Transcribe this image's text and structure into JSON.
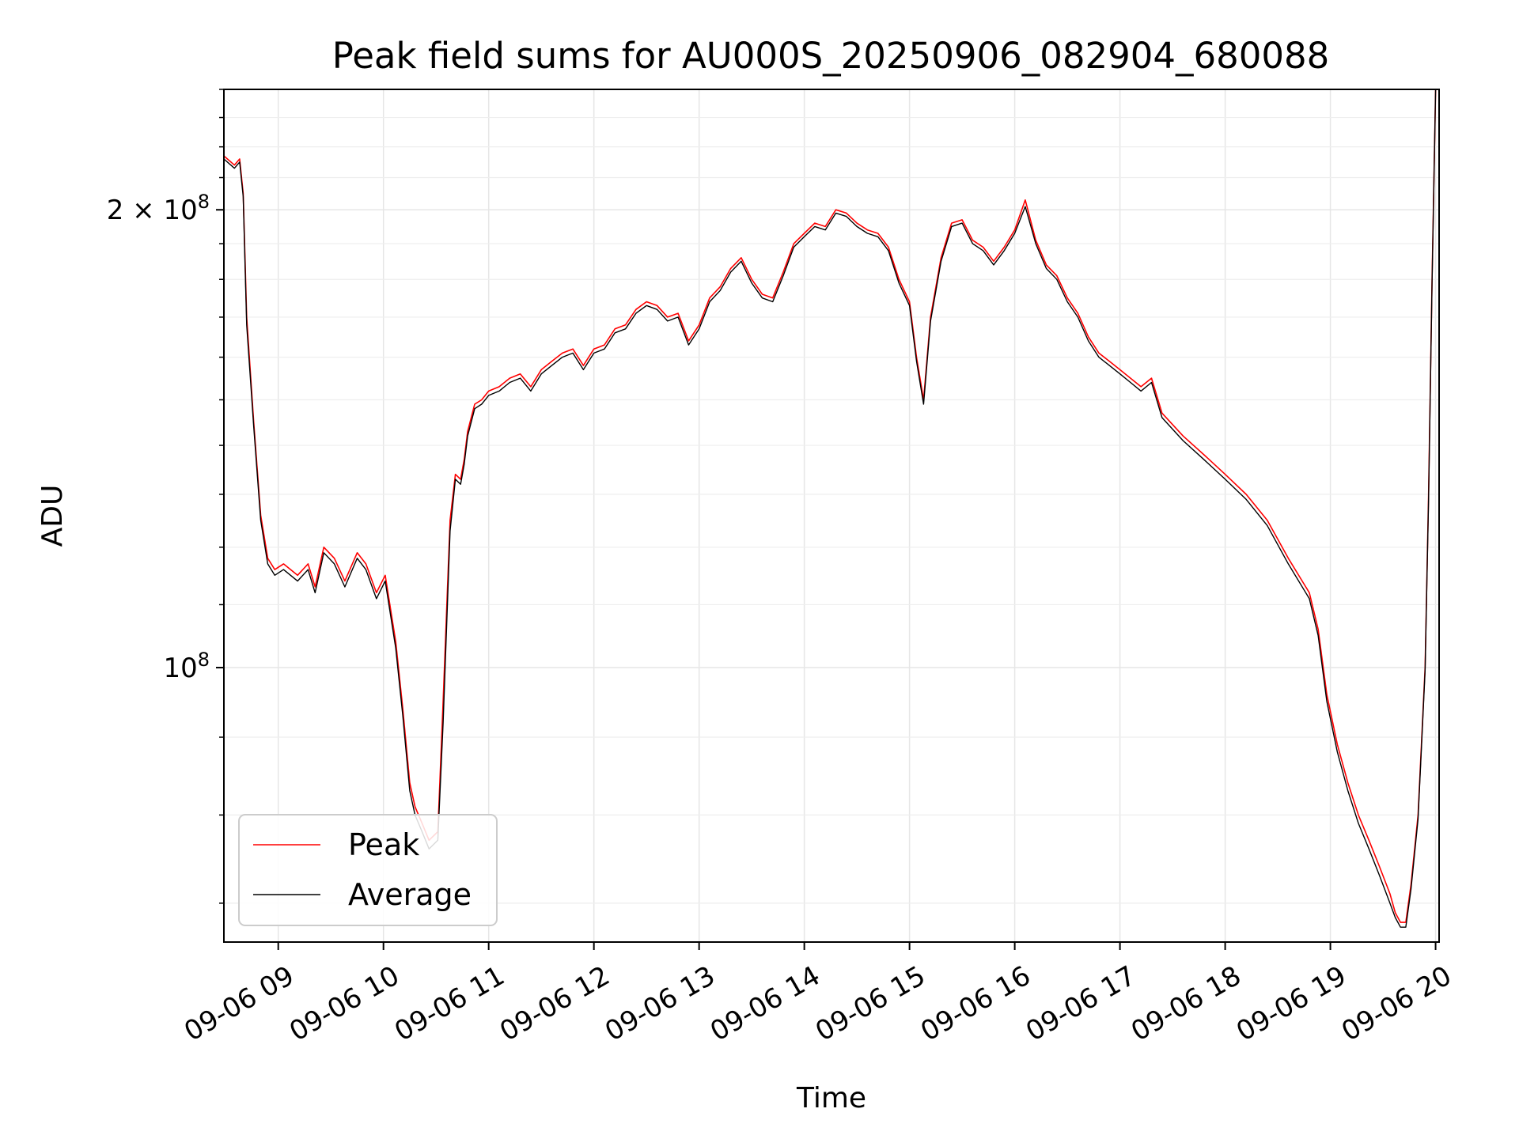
{
  "chart_data": {
    "type": "line",
    "title": "Peak field sums for AU000S_20250906_082904_680088",
    "xlabel": "Time",
    "ylabel": "ADU",
    "y_scale": "log",
    "grid": true,
    "legend_position": "lower-left",
    "x_tick_labels": [
      "09-06 09",
      "09-06 10",
      "09-06 11",
      "09-06 12",
      "09-06 13",
      "09-06 14",
      "09-06 15",
      "09-06 16",
      "09-06 17",
      "09-06 18",
      "09-06 19",
      "09-06 20"
    ],
    "x_ticks": [
      "2025-09-06T09:00",
      "2025-09-06T10:00",
      "2025-09-06T11:00",
      "2025-09-06T12:00",
      "2025-09-06T13:00",
      "2025-09-06T14:00",
      "2025-09-06T15:00",
      "2025-09-06T16:00",
      "2025-09-06T17:00",
      "2025-09-06T18:00",
      "2025-09-06T19:00",
      "2025-09-06T20:00"
    ],
    "xlim": [
      "2025-09-06T08:29",
      "2025-09-06T20:02"
    ],
    "y_ticks": [
      {
        "value": 100000000,
        "label_base": "10",
        "label_exp": "8"
      },
      {
        "value": 200000000,
        "label_base": "2 × 10",
        "label_exp": "8"
      }
    ],
    "ylim": [
      66000000,
      240000000
    ],
    "series": [
      {
        "name": "Peak",
        "color": "#ff0000",
        "x": [
          "2025-09-06T08:29",
          "2025-09-06T08:35",
          "2025-09-06T08:38",
          "2025-09-06T08:40",
          "2025-09-06T08:42",
          "2025-09-06T08:46",
          "2025-09-06T08:50",
          "2025-09-06T08:54",
          "2025-09-06T08:58",
          "2025-09-06T09:03",
          "2025-09-06T09:11",
          "2025-09-06T09:17",
          "2025-09-06T09:21",
          "2025-09-06T09:26",
          "2025-09-06T09:32",
          "2025-09-06T09:38",
          "2025-09-06T09:45",
          "2025-09-06T09:50",
          "2025-09-06T09:56",
          "2025-09-06T10:01",
          "2025-09-06T10:07",
          "2025-09-06T10:11",
          "2025-09-06T10:15",
          "2025-09-06T10:18",
          "2025-09-06T10:22",
          "2025-09-06T10:26",
          "2025-09-06T10:31",
          "2025-09-06T10:34",
          "2025-09-06T10:38",
          "2025-09-06T10:41",
          "2025-09-06T10:44",
          "2025-09-06T10:46",
          "2025-09-06T10:48",
          "2025-09-06T10:52",
          "2025-09-06T10:56",
          "2025-09-06T11:00",
          "2025-09-06T11:06",
          "2025-09-06T11:12",
          "2025-09-06T11:18",
          "2025-09-06T11:24",
          "2025-09-06T11:30",
          "2025-09-06T11:36",
          "2025-09-06T11:42",
          "2025-09-06T11:48",
          "2025-09-06T11:54",
          "2025-09-06T12:00",
          "2025-09-06T12:06",
          "2025-09-06T12:12",
          "2025-09-06T12:18",
          "2025-09-06T12:24",
          "2025-09-06T12:30",
          "2025-09-06T12:36",
          "2025-09-06T12:42",
          "2025-09-06T12:48",
          "2025-09-06T12:54",
          "2025-09-06T13:00",
          "2025-09-06T13:06",
          "2025-09-06T13:12",
          "2025-09-06T13:18",
          "2025-09-06T13:24",
          "2025-09-06T13:30",
          "2025-09-06T13:36",
          "2025-09-06T13:42",
          "2025-09-06T13:48",
          "2025-09-06T13:54",
          "2025-09-06T14:00",
          "2025-09-06T14:06",
          "2025-09-06T14:12",
          "2025-09-06T14:18",
          "2025-09-06T14:24",
          "2025-09-06T14:30",
          "2025-09-06T14:36",
          "2025-09-06T14:42",
          "2025-09-06T14:48",
          "2025-09-06T14:54",
          "2025-09-06T15:00",
          "2025-09-06T15:04",
          "2025-09-06T15:08",
          "2025-09-06T15:12",
          "2025-09-06T15:18",
          "2025-09-06T15:24",
          "2025-09-06T15:30",
          "2025-09-06T15:36",
          "2025-09-06T15:42",
          "2025-09-06T15:48",
          "2025-09-06T15:54",
          "2025-09-06T16:00",
          "2025-09-06T16:06",
          "2025-09-06T16:12",
          "2025-09-06T16:18",
          "2025-09-06T16:24",
          "2025-09-06T16:30",
          "2025-09-06T16:36",
          "2025-09-06T16:42",
          "2025-09-06T16:48",
          "2025-09-06T16:54",
          "2025-09-06T17:00",
          "2025-09-06T17:06",
          "2025-09-06T17:12",
          "2025-09-06T17:18",
          "2025-09-06T17:24",
          "2025-09-06T17:36",
          "2025-09-06T17:48",
          "2025-09-06T18:00",
          "2025-09-06T18:12",
          "2025-09-06T18:24",
          "2025-09-06T18:36",
          "2025-09-06T18:48",
          "2025-09-06T18:53",
          "2025-09-06T18:58",
          "2025-09-06T19:04",
          "2025-09-06T19:10",
          "2025-09-06T19:16",
          "2025-09-06T19:22",
          "2025-09-06T19:28",
          "2025-09-06T19:34",
          "2025-09-06T19:37",
          "2025-09-06T19:40",
          "2025-09-06T19:43",
          "2025-09-06T19:46",
          "2025-09-06T19:50",
          "2025-09-06T19:54",
          "2025-09-06T19:56",
          "2025-09-06T19:58",
          "2025-09-06T20:00"
        ],
        "y": [
          217000000,
          214000000,
          216000000,
          205000000,
          170000000,
          145000000,
          126000000,
          118000000,
          116000000,
          117000000,
          115000000,
          117000000,
          113000000,
          120000000,
          118000000,
          114000000,
          119000000,
          117000000,
          112000000,
          115000000,
          104000000,
          94000000,
          84000000,
          81000000,
          79000000,
          77000000,
          78000000,
          95000000,
          125000000,
          134000000,
          133000000,
          137000000,
          143000000,
          149000000,
          150000000,
          152000000,
          153000000,
          155000000,
          156000000,
          153000000,
          157000000,
          159000000,
          161000000,
          162000000,
          158000000,
          162000000,
          163000000,
          167000000,
          168000000,
          172000000,
          174000000,
          173000000,
          170000000,
          171000000,
          164000000,
          168000000,
          175000000,
          178000000,
          183000000,
          186000000,
          180000000,
          176000000,
          175000000,
          182000000,
          190000000,
          193000000,
          196000000,
          195000000,
          200000000,
          199000000,
          196000000,
          194000000,
          193000000,
          189000000,
          180000000,
          174000000,
          160000000,
          150000000,
          170000000,
          186000000,
          196000000,
          197000000,
          191000000,
          189000000,
          185000000,
          189000000,
          194000000,
          203000000,
          191000000,
          184000000,
          181000000,
          175000000,
          171000000,
          165000000,
          161000000,
          159000000,
          157000000,
          155000000,
          153000000,
          155000000,
          147000000,
          142000000,
          138000000,
          134000000,
          130000000,
          125000000,
          118000000,
          112000000,
          106000000,
          96000000,
          89000000,
          84000000,
          80000000,
          77000000,
          74000000,
          71000000,
          69000000,
          68000000,
          68000000,
          72000000,
          80000000,
          100000000,
          130000000,
          180000000,
          240000000
        ]
      },
      {
        "name": "Average",
        "color": "#000000",
        "x": [
          "2025-09-06T08:29",
          "2025-09-06T08:35",
          "2025-09-06T08:38",
          "2025-09-06T08:40",
          "2025-09-06T08:42",
          "2025-09-06T08:46",
          "2025-09-06T08:50",
          "2025-09-06T08:54",
          "2025-09-06T08:58",
          "2025-09-06T09:03",
          "2025-09-06T09:11",
          "2025-09-06T09:17",
          "2025-09-06T09:21",
          "2025-09-06T09:26",
          "2025-09-06T09:32",
          "2025-09-06T09:38",
          "2025-09-06T09:45",
          "2025-09-06T09:50",
          "2025-09-06T09:56",
          "2025-09-06T10:01",
          "2025-09-06T10:07",
          "2025-09-06T10:11",
          "2025-09-06T10:15",
          "2025-09-06T10:18",
          "2025-09-06T10:22",
          "2025-09-06T10:26",
          "2025-09-06T10:31",
          "2025-09-06T10:34",
          "2025-09-06T10:38",
          "2025-09-06T10:41",
          "2025-09-06T10:44",
          "2025-09-06T10:46",
          "2025-09-06T10:48",
          "2025-09-06T10:52",
          "2025-09-06T10:56",
          "2025-09-06T11:00",
          "2025-09-06T11:06",
          "2025-09-06T11:12",
          "2025-09-06T11:18",
          "2025-09-06T11:24",
          "2025-09-06T11:30",
          "2025-09-06T11:36",
          "2025-09-06T11:42",
          "2025-09-06T11:48",
          "2025-09-06T11:54",
          "2025-09-06T12:00",
          "2025-09-06T12:06",
          "2025-09-06T12:12",
          "2025-09-06T12:18",
          "2025-09-06T12:24",
          "2025-09-06T12:30",
          "2025-09-06T12:36",
          "2025-09-06T12:42",
          "2025-09-06T12:48",
          "2025-09-06T12:54",
          "2025-09-06T13:00",
          "2025-09-06T13:06",
          "2025-09-06T13:12",
          "2025-09-06T13:18",
          "2025-09-06T13:24",
          "2025-09-06T13:30",
          "2025-09-06T13:36",
          "2025-09-06T13:42",
          "2025-09-06T13:48",
          "2025-09-06T13:54",
          "2025-09-06T14:00",
          "2025-09-06T14:06",
          "2025-09-06T14:12",
          "2025-09-06T14:18",
          "2025-09-06T14:24",
          "2025-09-06T14:30",
          "2025-09-06T14:36",
          "2025-09-06T14:42",
          "2025-09-06T14:48",
          "2025-09-06T14:54",
          "2025-09-06T15:00",
          "2025-09-06T15:04",
          "2025-09-06T15:08",
          "2025-09-06T15:12",
          "2025-09-06T15:18",
          "2025-09-06T15:24",
          "2025-09-06T15:30",
          "2025-09-06T15:36",
          "2025-09-06T15:42",
          "2025-09-06T15:48",
          "2025-09-06T15:54",
          "2025-09-06T16:00",
          "2025-09-06T16:06",
          "2025-09-06T16:12",
          "2025-09-06T16:18",
          "2025-09-06T16:24",
          "2025-09-06T16:30",
          "2025-09-06T16:36",
          "2025-09-06T16:42",
          "2025-09-06T16:48",
          "2025-09-06T16:54",
          "2025-09-06T17:00",
          "2025-09-06T17:06",
          "2025-09-06T17:12",
          "2025-09-06T17:18",
          "2025-09-06T17:24",
          "2025-09-06T17:36",
          "2025-09-06T17:48",
          "2025-09-06T18:00",
          "2025-09-06T18:12",
          "2025-09-06T18:24",
          "2025-09-06T18:36",
          "2025-09-06T18:48",
          "2025-09-06T18:53",
          "2025-09-06T18:58",
          "2025-09-06T19:04",
          "2025-09-06T19:10",
          "2025-09-06T19:16",
          "2025-09-06T19:22",
          "2025-09-06T19:28",
          "2025-09-06T19:34",
          "2025-09-06T19:37",
          "2025-09-06T19:40",
          "2025-09-06T19:43",
          "2025-09-06T19:46",
          "2025-09-06T19:50",
          "2025-09-06T19:54",
          "2025-09-06T19:56",
          "2025-09-06T19:58",
          "2025-09-06T20:00"
        ],
        "y": [
          216000000,
          213000000,
          215000000,
          204000000,
          168000000,
          144000000,
          125000000,
          117000000,
          115000000,
          116000000,
          114000000,
          116000000,
          112000000,
          119000000,
          117000000,
          113000000,
          118000000,
          116000000,
          111000000,
          114000000,
          103000000,
          93000000,
          83000000,
          80000000,
          78000000,
          76000000,
          77000000,
          92000000,
          123000000,
          133000000,
          132000000,
          136000000,
          142000000,
          148000000,
          149000000,
          151000000,
          152000000,
          154000000,
          155000000,
          152000000,
          156000000,
          158000000,
          160000000,
          161000000,
          157000000,
          161000000,
          162000000,
          166000000,
          167000000,
          171000000,
          173000000,
          172000000,
          169000000,
          170000000,
          163000000,
          167000000,
          174000000,
          177000000,
          182000000,
          185000000,
          179000000,
          175000000,
          174000000,
          181000000,
          189000000,
          192000000,
          195000000,
          194000000,
          199000000,
          198000000,
          195000000,
          193000000,
          192000000,
          188000000,
          179000000,
          173000000,
          159000000,
          149000000,
          169000000,
          185000000,
          195000000,
          196000000,
          190000000,
          188000000,
          184000000,
          188000000,
          193000000,
          201000000,
          190000000,
          183000000,
          180000000,
          174000000,
          170000000,
          164000000,
          160000000,
          158000000,
          156000000,
          154000000,
          152000000,
          154000000,
          146000000,
          141000000,
          137000000,
          133000000,
          129000000,
          124000000,
          117000000,
          111000000,
          105000000,
          95000000,
          88000000,
          83000000,
          79000000,
          76000000,
          73000000,
          70000000,
          68500000,
          67500000,
          67500000,
          71500000,
          79500000,
          99500000,
          129000000,
          179000000,
          240000000
        ]
      }
    ]
  }
}
